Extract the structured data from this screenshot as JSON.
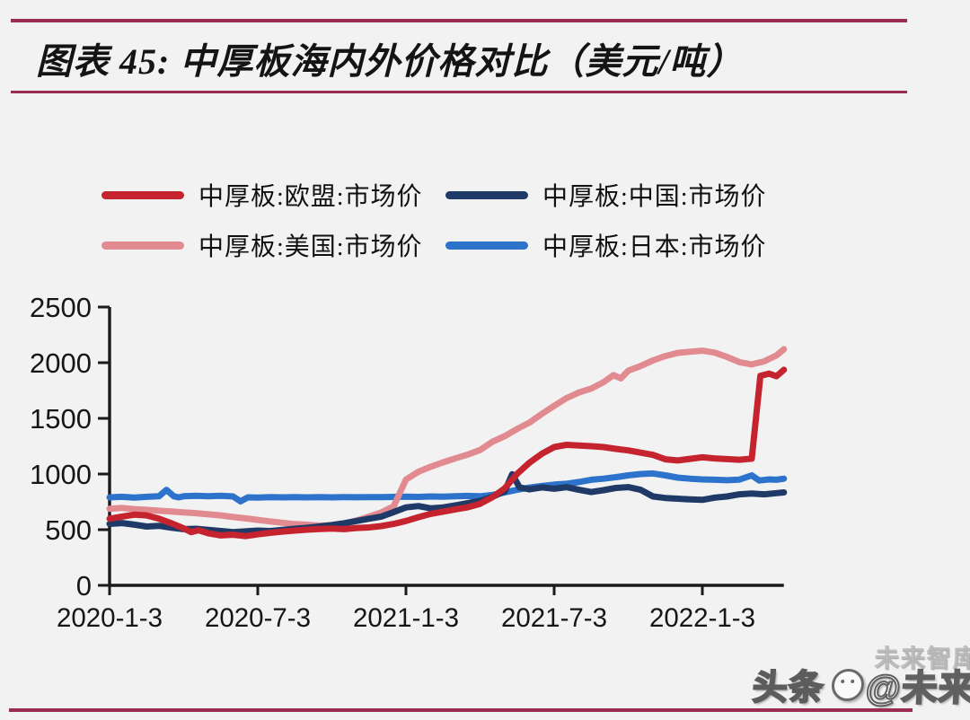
{
  "page": {
    "background": "#f3f2f2",
    "rule_color": "#9b2d50"
  },
  "header": {
    "title": "图表 45:  中厚板海内外价格对比（美元/吨）"
  },
  "watermark": {
    "ghost": "未来智库",
    "brand_left": "头条",
    "brand_right": "@未来智库"
  },
  "chart_data": {
    "type": "line",
    "title": "中厚板海内外价格对比（美元/吨）",
    "unit": "美元/吨",
    "grid": false,
    "legend_position": "top",
    "x_axis": {
      "unit": "months since 2020-01-03",
      "range": [
        0,
        27.3
      ],
      "ticks": [
        {
          "t": 0,
          "label": "2020-1-3"
        },
        {
          "t": 6,
          "label": "2020-7-3"
        },
        {
          "t": 12,
          "label": "2021-1-3"
        },
        {
          "t": 18,
          "label": "2021-7-3"
        },
        {
          "t": 24,
          "label": "2022-1-3"
        }
      ]
    },
    "y_axis": {
      "range": [
        0,
        2500
      ],
      "ticks": [
        0,
        500,
        1000,
        1500,
        2000,
        2500
      ]
    },
    "series": [
      {
        "name": "中厚板:欧盟:市场价",
        "color": "#c5242e",
        "points": [
          [
            0,
            598
          ],
          [
            0.5,
            618
          ],
          [
            1,
            635
          ],
          [
            1.5,
            628
          ],
          [
            2,
            598
          ],
          [
            2.5,
            558
          ],
          [
            3,
            512
          ],
          [
            3.3,
            478
          ],
          [
            3.6,
            495
          ],
          [
            4,
            468
          ],
          [
            4.5,
            448
          ],
          [
            5,
            455
          ],
          [
            5.5,
            442
          ],
          [
            6,
            458
          ],
          [
            6.5,
            472
          ],
          [
            7,
            482
          ],
          [
            7.5,
            492
          ],
          [
            8,
            500
          ],
          [
            8.5,
            506
          ],
          [
            9,
            510
          ],
          [
            9.5,
            505
          ],
          [
            10,
            515
          ],
          [
            10.5,
            520
          ],
          [
            11,
            532
          ],
          [
            11.5,
            552
          ],
          [
            12,
            578
          ],
          [
            12.5,
            612
          ],
          [
            13,
            642
          ],
          [
            13.5,
            662
          ],
          [
            14,
            682
          ],
          [
            14.5,
            702
          ],
          [
            15,
            732
          ],
          [
            15.5,
            792
          ],
          [
            16,
            872
          ],
          [
            16.5,
            1002
          ],
          [
            17,
            1102
          ],
          [
            17.5,
            1182
          ],
          [
            18,
            1242
          ],
          [
            18.5,
            1262
          ],
          [
            19,
            1256
          ],
          [
            19.5,
            1250
          ],
          [
            20,
            1242
          ],
          [
            20.5,
            1226
          ],
          [
            21,
            1212
          ],
          [
            21.5,
            1192
          ],
          [
            22,
            1172
          ],
          [
            22.5,
            1132
          ],
          [
            23,
            1122
          ],
          [
            23.5,
            1136
          ],
          [
            24,
            1150
          ],
          [
            24.5,
            1140
          ],
          [
            25,
            1134
          ],
          [
            25.5,
            1128
          ],
          [
            26,
            1138
          ],
          [
            26.35,
            1882
          ],
          [
            26.7,
            1902
          ],
          [
            27,
            1878
          ],
          [
            27.3,
            1936
          ]
        ]
      },
      {
        "name": "中厚板:中国:市场价",
        "color": "#1f3a67",
        "points": [
          [
            0,
            552
          ],
          [
            0.5,
            560
          ],
          [
            1,
            545
          ],
          [
            1.5,
            528
          ],
          [
            2,
            535
          ],
          [
            2.5,
            518
          ],
          [
            3,
            505
          ],
          [
            3.5,
            508
          ],
          [
            4,
            498
          ],
          [
            4.5,
            488
          ],
          [
            5,
            478
          ],
          [
            5.5,
            485
          ],
          [
            6,
            492
          ],
          [
            6.5,
            488
          ],
          [
            7,
            498
          ],
          [
            7.5,
            508
          ],
          [
            8,
            518
          ],
          [
            8.5,
            528
          ],
          [
            9,
            542
          ],
          [
            9.5,
            558
          ],
          [
            10,
            578
          ],
          [
            10.5,
            598
          ],
          [
            11,
            618
          ],
          [
            11.5,
            658
          ],
          [
            12,
            700
          ],
          [
            12.5,
            712
          ],
          [
            13,
            692
          ],
          [
            13.5,
            700
          ],
          [
            14,
            718
          ],
          [
            14.5,
            738
          ],
          [
            15,
            758
          ],
          [
            15.5,
            795
          ],
          [
            16,
            845
          ],
          [
            16.3,
            998
          ],
          [
            16.6,
            880
          ],
          [
            17,
            862
          ],
          [
            17.5,
            880
          ],
          [
            18,
            868
          ],
          [
            18.5,
            882
          ],
          [
            19,
            858
          ],
          [
            19.5,
            838
          ],
          [
            20,
            855
          ],
          [
            20.5,
            875
          ],
          [
            21,
            882
          ],
          [
            21.5,
            858
          ],
          [
            22,
            798
          ],
          [
            22.5,
            785
          ],
          [
            23,
            778
          ],
          [
            23.5,
            772
          ],
          [
            24,
            768
          ],
          [
            24.5,
            788
          ],
          [
            25,
            798
          ],
          [
            25.5,
            818
          ],
          [
            26,
            825
          ],
          [
            26.5,
            818
          ],
          [
            27,
            828
          ],
          [
            27.3,
            835
          ]
        ]
      },
      {
        "name": "中厚板:美国:市场价",
        "color": "#e18b90",
        "points": [
          [
            0,
            688
          ],
          [
            0.5,
            695
          ],
          [
            1,
            685
          ],
          [
            1.5,
            678
          ],
          [
            2,
            670
          ],
          [
            2.5,
            664
          ],
          [
            3,
            655
          ],
          [
            3.5,
            648
          ],
          [
            4,
            638
          ],
          [
            4.5,
            628
          ],
          [
            5,
            614
          ],
          [
            5.5,
            602
          ],
          [
            6,
            588
          ],
          [
            6.5,
            574
          ],
          [
            7,
            562
          ],
          [
            7.5,
            550
          ],
          [
            8,
            544
          ],
          [
            8.5,
            536
          ],
          [
            9,
            540
          ],
          [
            9.5,
            556
          ],
          [
            10,
            582
          ],
          [
            10.5,
            618
          ],
          [
            11,
            655
          ],
          [
            11.5,
            710
          ],
          [
            12,
            950
          ],
          [
            12.5,
            1020
          ],
          [
            13,
            1065
          ],
          [
            13.5,
            1105
          ],
          [
            14,
            1140
          ],
          [
            14.5,
            1175
          ],
          [
            15,
            1215
          ],
          [
            15.5,
            1290
          ],
          [
            16,
            1340
          ],
          [
            16.5,
            1405
          ],
          [
            17,
            1462
          ],
          [
            17.5,
            1540
          ],
          [
            18,
            1612
          ],
          [
            18.5,
            1682
          ],
          [
            19,
            1732
          ],
          [
            19.5,
            1768
          ],
          [
            20,
            1825
          ],
          [
            20.4,
            1888
          ],
          [
            20.7,
            1860
          ],
          [
            21,
            1928
          ],
          [
            21.5,
            1970
          ],
          [
            22,
            2020
          ],
          [
            22.5,
            2060
          ],
          [
            23,
            2088
          ],
          [
            23.5,
            2098
          ],
          [
            24,
            2108
          ],
          [
            24.5,
            2090
          ],
          [
            25,
            2052
          ],
          [
            25.5,
            2005
          ],
          [
            26,
            1985
          ],
          [
            26.5,
            2012
          ],
          [
            27,
            2065
          ],
          [
            27.3,
            2122
          ]
        ]
      },
      {
        "name": "中厚板:日本:市场价",
        "color": "#2e73cb",
        "points": [
          [
            0,
            790
          ],
          [
            0.5,
            795
          ],
          [
            1,
            788
          ],
          [
            1.5,
            795
          ],
          [
            2,
            800
          ],
          [
            2.3,
            858
          ],
          [
            2.6,
            800
          ],
          [
            2.8,
            790
          ],
          [
            3,
            800
          ],
          [
            3.5,
            805
          ],
          [
            4,
            800
          ],
          [
            4.5,
            805
          ],
          [
            5,
            798
          ],
          [
            5.3,
            755
          ],
          [
            5.6,
            790
          ],
          [
            6,
            788
          ],
          [
            6.5,
            792
          ],
          [
            7,
            790
          ],
          [
            7.5,
            793
          ],
          [
            8,
            790
          ],
          [
            8.5,
            792
          ],
          [
            9,
            790
          ],
          [
            9.5,
            793
          ],
          [
            10,
            791
          ],
          [
            10.5,
            793
          ],
          [
            11,
            792
          ],
          [
            11.5,
            794
          ],
          [
            12,
            796
          ],
          [
            12.5,
            794
          ],
          [
            13,
            798
          ],
          [
            13.5,
            796
          ],
          [
            14,
            800
          ],
          [
            14.5,
            803
          ],
          [
            15,
            800
          ],
          [
            15.5,
            812
          ],
          [
            16,
            835
          ],
          [
            16.5,
            858
          ],
          [
            17,
            878
          ],
          [
            17.5,
            893
          ],
          [
            18,
            905
          ],
          [
            18.5,
            912
          ],
          [
            19,
            928
          ],
          [
            19.5,
            948
          ],
          [
            20,
            958
          ],
          [
            20.5,
            972
          ],
          [
            21,
            988
          ],
          [
            21.5,
            1000
          ],
          [
            22,
            1005
          ],
          [
            22.5,
            988
          ],
          [
            23,
            968
          ],
          [
            23.5,
            958
          ],
          [
            24,
            952
          ],
          [
            24.5,
            948
          ],
          [
            25,
            944
          ],
          [
            25.5,
            950
          ],
          [
            26,
            988
          ],
          [
            26.3,
            942
          ],
          [
            26.7,
            952
          ],
          [
            27,
            948
          ],
          [
            27.3,
            958
          ]
        ]
      }
    ]
  }
}
